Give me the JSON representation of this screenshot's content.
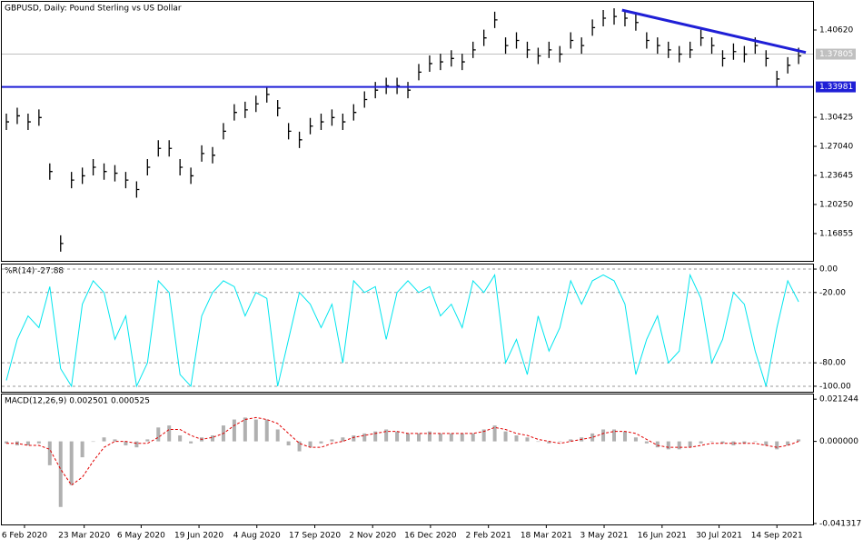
{
  "chart_data": [
    {
      "type": "price",
      "title": "GBPUSD, Daily:  Pound Sterling vs US Dollar",
      "color": "#000000",
      "values": [
        1.299,
        1.306,
        1.299,
        1.304,
        1.241,
        1.157,
        1.231,
        1.236,
        1.246,
        1.241,
        1.239,
        1.231,
        1.22,
        1.246,
        1.268,
        1.268,
        1.246,
        1.236,
        1.262,
        1.26,
        1.288,
        1.31,
        1.313,
        1.32,
        1.331,
        1.315,
        1.288,
        1.278,
        1.294,
        1.299,
        1.304,
        1.299,
        1.31,
        1.325,
        1.336,
        1.341,
        1.341,
        1.336,
        1.357,
        1.367,
        1.369,
        1.373,
        1.369,
        1.383,
        1.397,
        1.418,
        1.388,
        1.394,
        1.383,
        1.376,
        1.383,
        1.378,
        1.394,
        1.388,
        1.409,
        1.42,
        1.422,
        1.42,
        1.415,
        1.394,
        1.388,
        1.383,
        1.378,
        1.383,
        1.397,
        1.388,
        1.373,
        1.381,
        1.378,
        1.388,
        1.373,
        1.349,
        1.365,
        1.376
      ],
      "xlim": [
        -0.42,
        74.33
      ],
      "ylim": [
        1.1367,
        1.4391
      ],
      "yticks": [
        {
          "value": 1.4062,
          "label": "1.40620"
        },
        1.30425,
        {
          "value": 1.2704,
          "label": "1.27040"
        },
        1.23645,
        {
          "value": 1.2025,
          "label": "1.20250"
        },
        1.16855
      ],
      "current_price": {
        "value": 1.37805,
        "color": "#c0c0c0"
      },
      "support": {
        "value": 1.33981,
        "color": "#1f1fd6"
      },
      "trendline": {
        "x": [
          56.73,
          73.66
        ],
        "y": [
          1.4294,
          1.38
        ],
        "color": "#1f1fd6"
      }
    },
    {
      "type": "oscillator",
      "title": "%R(14) -27.88",
      "color": "#00e5ee",
      "values": [
        -95,
        -60,
        -40,
        -50,
        -15,
        -85,
        -100,
        -30,
        -10,
        -20,
        -60,
        -40,
        -100,
        -80,
        -10,
        -20,
        -90,
        -100,
        -40,
        -20,
        -10,
        -15,
        -40,
        -20,
        -25,
        -100,
        -60,
        -20,
        -30,
        -50,
        -30,
        -80,
        -10,
        -20,
        -15,
        -60,
        -20,
        -10,
        -20,
        -15,
        -40,
        -30,
        -50,
        -10,
        -20,
        -5,
        -80,
        -60,
        -90,
        -40,
        -70,
        -50,
        -10,
        -30,
        -10,
        -5,
        -10,
        -30,
        -90,
        -60,
        -40,
        -80,
        -70,
        -5,
        -25,
        -80,
        -60,
        -20,
        -30,
        -70,
        -100,
        -50,
        -10,
        -27.88
      ],
      "xlim": [
        -0.42,
        74.33
      ],
      "ylim": [
        -104.7,
        3.9
      ],
      "yticks": [
        {
          "value": 0,
          "label": "0.00"
        },
        {
          "value": -20,
          "label": "-20.00"
        },
        {
          "value": -80,
          "label": "-80.00"
        },
        {
          "value": -100,
          "label": "-100.00"
        }
      ],
      "grid": true
    },
    {
      "type": "macd",
      "title": "MACD(12,26,9) 0.002501 0.000525",
      "series": [
        {
          "color": "#b0b0b0",
          "values": [
            -0.001,
            -0.002,
            -0.002,
            -0.001,
            -0.012,
            -0.033,
            -0.022,
            -0.008,
            0.0,
            0.002,
            0.001,
            -0.002,
            -0.003,
            0.001,
            0.007,
            0.008,
            0.003,
            -0.001,
            0.002,
            0.003,
            0.008,
            0.011,
            0.012,
            0.011,
            0.011,
            0.006,
            -0.002,
            -0.005,
            -0.003,
            -0.001,
            0.001,
            0.002,
            0.003,
            0.004,
            0.005,
            0.006,
            0.005,
            0.004,
            0.004,
            0.005,
            0.004,
            0.004,
            0.004,
            0.004,
            0.006,
            0.008,
            0.005,
            0.003,
            0.002,
            0.0,
            -0.001,
            0.0,
            0.001,
            0.002,
            0.004,
            0.006,
            0.006,
            0.005,
            0.002,
            -0.001,
            -0.003,
            -0.004,
            -0.004,
            -0.003,
            -0.001,
            0.0,
            -0.001,
            -0.002,
            -0.001,
            0.0,
            -0.002,
            -0.004,
            -0.002,
            0.001
          ]
        },
        {
          "color": "#e00000",
          "values": [
            -0.001,
            -0.001,
            -0.002,
            -0.002,
            -0.004,
            -0.014,
            -0.022,
            -0.018,
            -0.01,
            -0.003,
            0.0,
            0.0,
            -0.001,
            -0.001,
            0.002,
            0.006,
            0.006,
            0.003,
            0.001,
            0.002,
            0.004,
            0.008,
            0.011,
            0.012,
            0.011,
            0.009,
            0.004,
            -0.001,
            -0.003,
            -0.003,
            -0.001,
            0.0,
            0.002,
            0.003,
            0.004,
            0.005,
            0.005,
            0.004,
            0.004,
            0.004,
            0.004,
            0.004,
            0.004,
            0.004,
            0.005,
            0.007,
            0.006,
            0.004,
            0.003,
            0.001,
            0.0,
            -0.001,
            0.0,
            0.001,
            0.002,
            0.004,
            0.005,
            0.005,
            0.004,
            0.001,
            -0.002,
            -0.003,
            -0.003,
            -0.003,
            -0.002,
            -0.001,
            -0.001,
            -0.001,
            -0.001,
            -0.001,
            -0.002,
            -0.003,
            -0.002,
            0.0
          ]
        }
      ],
      "xlim": [
        -0.42,
        74.33
      ],
      "ylim": [
        -0.0418,
        0.0236
      ],
      "yticks": [
        0.021244,
        {
          "value": 0,
          "label": "0.000000"
        },
        -0.041317
      ],
      "xticks": [
        {
          "value": 1.67,
          "label": "6 Feb 2020"
        },
        {
          "value": 7.17,
          "label": "23 Mar 2020"
        },
        {
          "value": 12.42,
          "label": "6 May 2020"
        },
        {
          "value": 17.75,
          "label": "19 Jun 2020"
        },
        {
          "value": 23.08,
          "label": "4 Aug 2020"
        },
        {
          "value": 28.42,
          "label": "17 Sep 2020"
        },
        {
          "value": 33.75,
          "label": "2 Nov 2020"
        },
        {
          "value": 39.08,
          "label": "16 Dec 2020"
        },
        {
          "value": 44.42,
          "label": "2 Feb 2021"
        },
        {
          "value": 49.75,
          "label": "18 Mar 2021"
        },
        {
          "value": 55.08,
          "label": "3 May 2021"
        },
        {
          "value": 60.42,
          "label": "16 Jun 2021"
        },
        {
          "value": 65.67,
          "label": "30 Jul 2021"
        },
        {
          "value": 71,
          "label": "14 Sep 2021"
        }
      ]
    }
  ]
}
